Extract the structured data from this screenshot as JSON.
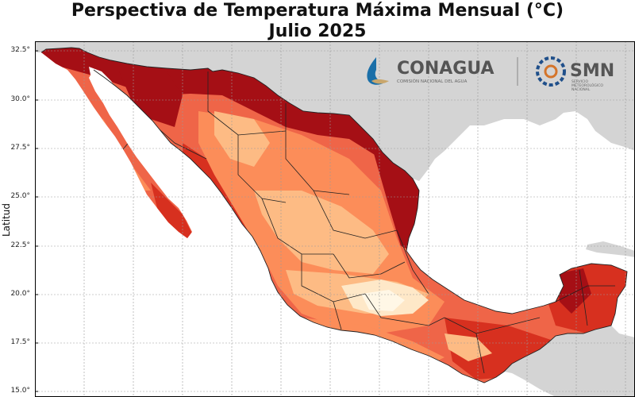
{
  "title": {
    "line1": "Perspectiva de Temperatura Máxima Mensual (°C)",
    "line2": "Julio 2025"
  },
  "logos": {
    "conagua": {
      "name": "CONAGUA",
      "subtitle": "COMISIÓN NACIONAL DEL AGUA"
    },
    "smn": {
      "name": "SMN",
      "subtitle_lines": [
        "SERVICIO",
        "METEOROLÓGICO",
        "NACIONAL"
      ]
    }
  },
  "map": {
    "ylabel": "Latitud",
    "lat_ticks": [
      "32.5°",
      "30.0°",
      "27.5°",
      "25.0°",
      "22.5°",
      "20.0°",
      "17.5°",
      "15.0°"
    ],
    "grid": true,
    "colors": {
      "ocean": "#ffffff",
      "other_land": "#d4d4d4",
      "dark_red": "#a50f15",
      "red": "#d7301f",
      "red_orange": "#ef6548",
      "orange": "#fc8d59",
      "light_orange": "#fdbb84",
      "pale": "#fee8c8",
      "paler": "#fff7e6",
      "state_line": "#222222",
      "grid_line": "#9a9a9a"
    }
  }
}
